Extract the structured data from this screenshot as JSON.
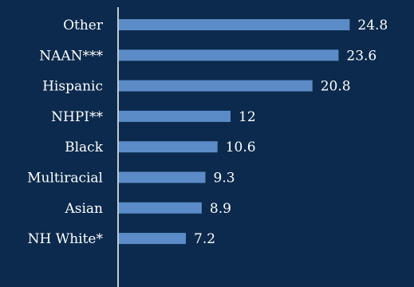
{
  "chart_data": {
    "type": "bar",
    "orientation": "horizontal",
    "categories": [
      "Other",
      "NAAN***",
      "Hispanic",
      "NHPI**",
      "Black",
      "Multiracial",
      "Asian",
      "NH White*"
    ],
    "values": [
      24.8,
      23.6,
      20.8,
      12,
      10.6,
      9.3,
      8.9,
      7.2
    ],
    "value_labels": [
      "24.8",
      "23.6",
      "20.8",
      "12",
      "10.6",
      "9.3",
      "8.9",
      "7.2"
    ],
    "title": "",
    "xlabel": "",
    "ylabel": "",
    "xlim": [
      0,
      30
    ],
    "grid": false,
    "legend": "none",
    "colors": {
      "background": "#0b2a4d",
      "bar": "#5b8cc8",
      "axis": "#ffffff",
      "text": "#ffffff"
    }
  }
}
